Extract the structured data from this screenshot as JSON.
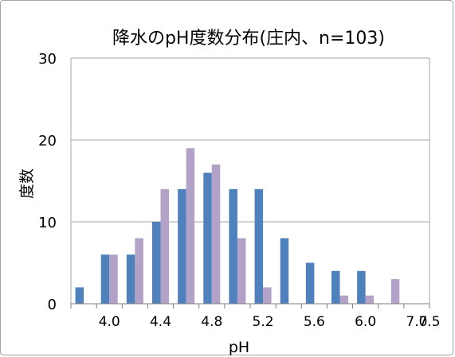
{
  "chart_data": {
    "type": "bar",
    "title": "降水のpH度数分布(庄内、n=103)",
    "xlabel": "pH",
    "ylabel": "度数",
    "ylim": [
      0,
      30
    ],
    "y_ticks": [
      "0",
      "10",
      "20",
      "30"
    ],
    "grid": true,
    "legend": "none",
    "x_tick_labels": [
      "4.0",
      "4.4",
      "4.8",
      "5.2",
      "5.6",
      "6.0",
      "7.0",
      "7.5"
    ],
    "categories": [
      "",
      "4.0",
      "",
      "4.4",
      "",
      "4.8",
      "",
      "5.2",
      "",
      "5.6",
      "",
      "6.0",
      "",
      "7.0"
    ],
    "series": [
      {
        "name": "",
        "color": "#4f81bd",
        "values": [
          2,
          6,
          6,
          10,
          14,
          16,
          14,
          14,
          8,
          5,
          4,
          4,
          0,
          0
        ]
      },
      {
        "name": "",
        "color": "#b3a2c7",
        "values": [
          0,
          6,
          8,
          14,
          19,
          17,
          8,
          2,
          0,
          0,
          1,
          1,
          3,
          0
        ]
      }
    ]
  }
}
